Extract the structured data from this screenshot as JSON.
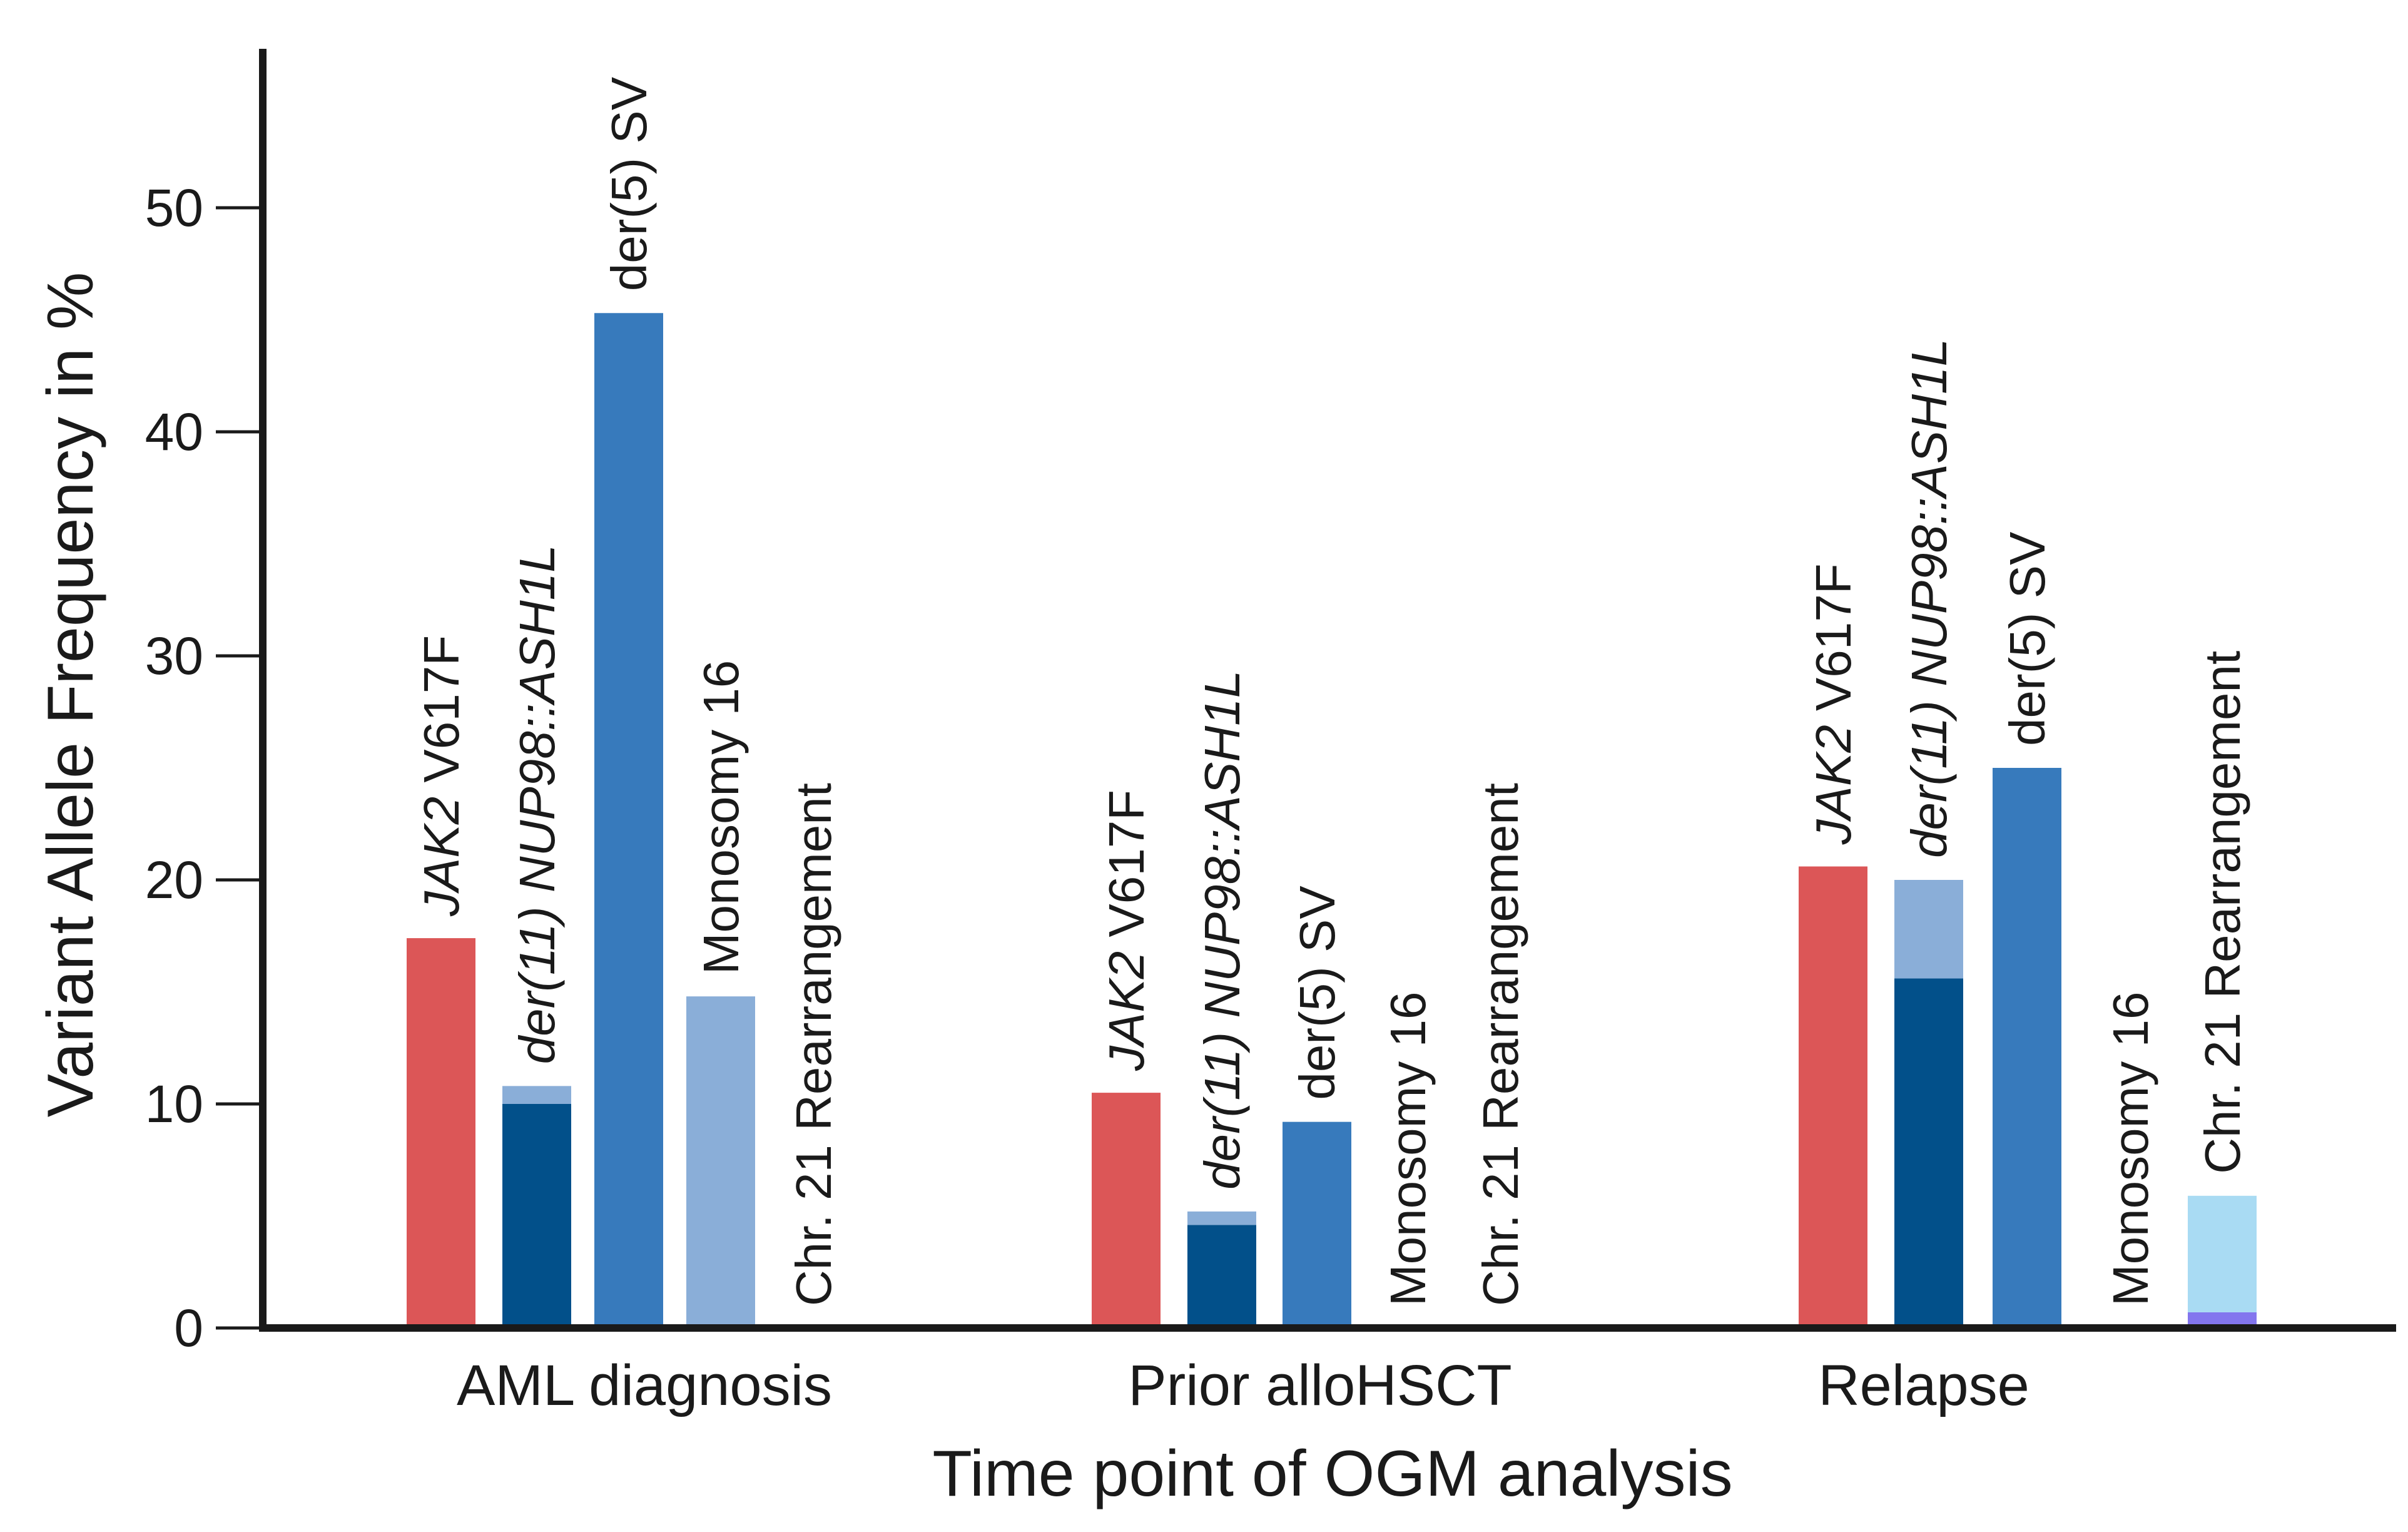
{
  "chart_data": {
    "type": "bar",
    "stacked_segments": true,
    "xlabel": "Time point of OGM analysis",
    "ylabel": "Variant Allele Frequency in %",
    "ylim": [
      0,
      55
    ],
    "yticks": [
      "0",
      "10",
      "20",
      "30",
      "40",
      "50"
    ],
    "grid": false,
    "legend": "none",
    "groups": [
      {
        "category": "AML diagnosis",
        "bars": [
          {
            "label_italic": "JAK2",
            "label": " V617F",
            "segments": [
              {
                "value": 17.4,
                "color": "#dc5657"
              }
            ]
          },
          {
            "label_italic": "der(11) NUP98::ASH1L",
            "label": "",
            "segments": [
              {
                "value": 10.0,
                "color": "#02508a"
              },
              {
                "value": 0.8,
                "color": "#8aaed8"
              }
            ]
          },
          {
            "label_italic": "",
            "label": "der(5) SV",
            "segments": [
              {
                "value": 45.3,
                "color": "#377abc"
              }
            ]
          },
          {
            "label_italic": "",
            "label": "Monosomy 16",
            "segments": [
              {
                "value": 14.8,
                "color": "#8aaed8"
              }
            ]
          },
          {
            "label_italic": "",
            "label": "Chr. 21 Rearrangement",
            "segments": []
          }
        ]
      },
      {
        "category": "Prior alloHSCT",
        "bars": [
          {
            "label_italic": "JAK2",
            "label": " V617F",
            "segments": [
              {
                "value": 10.5,
                "color": "#dc5657"
              }
            ]
          },
          {
            "label_italic": "der(11) NUP98::ASH1L",
            "label": "",
            "segments": [
              {
                "value": 4.6,
                "color": "#02508a"
              },
              {
                "value": 0.6,
                "color": "#8aaed8"
              }
            ]
          },
          {
            "label_italic": "",
            "label": "der(5) SV",
            "segments": [
              {
                "value": 9.2,
                "color": "#377abc"
              }
            ]
          },
          {
            "label_italic": "",
            "label": "Monosomy 16",
            "segments": []
          },
          {
            "label_italic": "",
            "label": "Chr. 21 Rearrangement",
            "segments": []
          }
        ]
      },
      {
        "category": "Relapse",
        "bars": [
          {
            "label_italic": "JAK2",
            "label": " V617F",
            "segments": [
              {
                "value": 20.6,
                "color": "#dc5657"
              }
            ]
          },
          {
            "label_italic": "der(11) NUP98::ASH1L",
            "label": "",
            "segments": [
              {
                "value": 15.6,
                "color": "#02508a"
              },
              {
                "value": 4.4,
                "color": "#8aaed8"
              }
            ]
          },
          {
            "label_italic": "",
            "label": "der(5) SV",
            "segments": [
              {
                "value": 25.0,
                "color": "#377abc"
              }
            ]
          },
          {
            "label_italic": "",
            "label": "Monosomy 16",
            "segments": []
          },
          {
            "label_italic": "",
            "label": "Chr. 21 Rearrangement",
            "segments": [
              {
                "value": 0.7,
                "color": "#8376ee"
              },
              {
                "value": 5.2,
                "color": "#a9dbf3"
              }
            ]
          }
        ]
      }
    ]
  }
}
